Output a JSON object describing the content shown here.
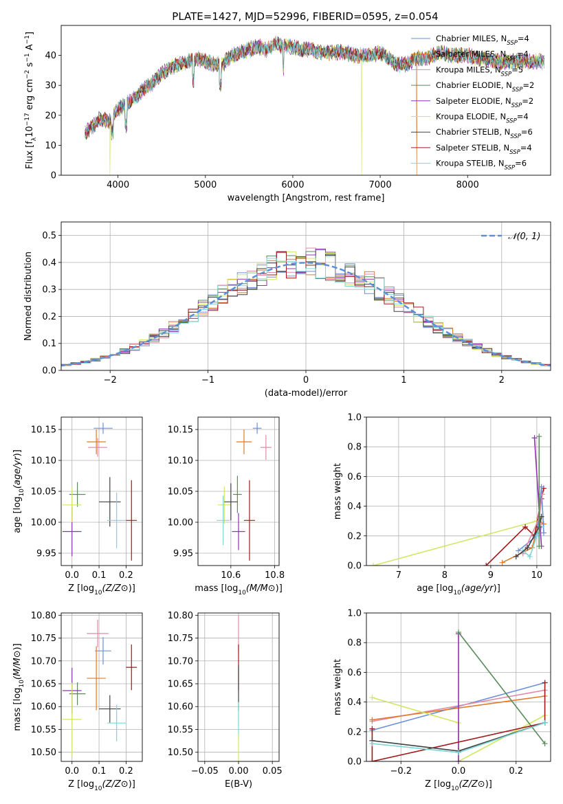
{
  "title": "PLATE=1427, MJD=52996, FIBERID=0595, z=0.054",
  "colors": {
    "chabrier_miles": "#6a8fd8",
    "salpeter_miles": "#e07a28",
    "kroupa_miles": "#e08aa8",
    "chabrier_elodie": "#5a8a5a",
    "salpeter_elodie": "#9030b0",
    "kroupa_elodie": "#d0e860",
    "chabrier_stelib": "#404040",
    "salpeter_stelib": "#a01818",
    "kroupa_stelib": "#7dd6d6",
    "normal_curve": "#5b8fd8"
  },
  "legend_spectrum": [
    {
      "key": "chabrier_miles",
      "label": "Chabrier MILES, N",
      "sub": "SSP",
      "suffix": "=4"
    },
    {
      "key": "salpeter_miles",
      "label": "Salpeter MILES, N",
      "sub": "SSP",
      "suffix": "=4"
    },
    {
      "key": "kroupa_miles",
      "label": "Kroupa MILES, N",
      "sub": "SSP",
      "suffix": "=5"
    },
    {
      "key": "chabrier_elodie",
      "label": "Chabrier ELODIE, N",
      "sub": "SSP",
      "suffix": "=2"
    },
    {
      "key": "salpeter_elodie",
      "label": "Salpeter ELODIE, N",
      "sub": "SSP",
      "suffix": "=2"
    },
    {
      "key": "kroupa_elodie",
      "label": "Kroupa ELODIE, N",
      "sub": "SSP",
      "suffix": "=4"
    },
    {
      "key": "chabrier_stelib",
      "label": "Chabrier STELIB, N",
      "sub": "SSP",
      "suffix": "=6"
    },
    {
      "key": "salpeter_stelib",
      "label": "Salpeter STELIB, N",
      "sub": "SSP",
      "suffix": "=4"
    },
    {
      "key": "kroupa_stelib",
      "label": "Kroupa STELIB, N",
      "sub": "SSP",
      "suffix": "=6"
    }
  ],
  "legend_hist": {
    "label": "𝒩(0, 1)"
  },
  "chart_data": [
    {
      "id": "spectrum",
      "type": "line",
      "xlabel": "wavelength [Angstrom, rest frame]",
      "ylabel": "Flux [f_λ 10^-17 erg cm^-2 s^-1 A^-1]",
      "xlim": [
        3350,
        8950
      ],
      "ylim": [
        0,
        50
      ],
      "xticks": [
        4000,
        5000,
        6000,
        7000,
        8000
      ],
      "yticks": [
        0,
        10,
        20,
        30,
        40
      ],
      "x": [
        3620,
        3700,
        3800,
        3900,
        4000,
        4100,
        4200,
        4300,
        4400,
        4500,
        4600,
        4700,
        4800,
        4900,
        5000,
        5100,
        5200,
        5300,
        5400,
        5500,
        5600,
        5700,
        5800,
        5900,
        6000,
        6100,
        6200,
        6300,
        6400,
        6500,
        6600,
        6700,
        6800,
        6900,
        7000,
        7100,
        7200,
        7300,
        7400,
        7500,
        7600,
        7700,
        7800,
        7900,
        8000,
        8100,
        8200,
        8300,
        8400,
        8500,
        8600,
        8700,
        8800,
        8900
      ],
      "y": [
        14,
        16,
        19,
        18,
        22,
        24,
        26,
        29,
        31,
        34,
        36,
        37,
        38,
        39,
        38,
        37,
        37,
        40,
        41,
        42,
        43,
        42,
        44,
        43,
        43,
        42,
        42,
        41,
        41,
        41,
        41,
        40,
        40,
        40,
        41,
        39,
        37,
        37,
        39,
        39,
        40,
        41,
        40,
        40,
        40,
        39,
        39,
        38,
        38,
        38,
        38,
        38,
        38,
        38
      ],
      "glitches": [
        {
          "x": 3910,
          "series": "kroupa_elodie",
          "y": 0
        },
        {
          "x": 6790,
          "series": "kroupa_elodie",
          "y": 0
        },
        {
          "x": 7420,
          "series": "salpeter_miles",
          "y": 0
        }
      ]
    },
    {
      "id": "residuals",
      "type": "histogram",
      "xlabel": "(data-model)/error",
      "ylabel": "Normed distribution",
      "xlim": [
        -2.5,
        2.5
      ],
      "ylim": [
        0,
        0.55
      ],
      "xticks": [
        -2,
        -1,
        0,
        1,
        2
      ],
      "yticks": [
        0.0,
        0.1,
        0.2,
        0.3,
        0.4,
        0.5
      ],
      "bin_width": 0.1,
      "reference": "normal(0,1)"
    },
    {
      "id": "age_vs_Z",
      "type": "scatter",
      "xlabel": "Z [log10(Z/Z⊙)]",
      "ylabel": "age  [log10(age/yr)]",
      "xlim": [
        -0.04,
        0.26
      ],
      "ylim": [
        9.93,
        10.17
      ],
      "xticks": [
        0.0,
        0.1,
        0.2
      ],
      "yticks": [
        9.95,
        10.0,
        10.05,
        10.1,
        10.15
      ],
      "points": [
        {
          "series": "chabrier_miles",
          "x": 0.115,
          "xerr": 0.035,
          "y": 10.152,
          "yerr": 0.009
        },
        {
          "series": "salpeter_miles",
          "x": 0.09,
          "xerr": 0.035,
          "y": 10.13,
          "yerr": 0.02
        },
        {
          "series": "kroupa_miles",
          "x": 0.095,
          "xerr": 0.035,
          "y": 10.121,
          "yerr": 0.015
        },
        {
          "series": "chabrier_elodie",
          "x": 0.02,
          "xerr": 0.03,
          "y": 10.045,
          "yerr": 0.02
        },
        {
          "series": "salpeter_elodie",
          "x": 0.0,
          "xerr": 0.035,
          "y": 9.985,
          "yerr": 0.04
        },
        {
          "series": "kroupa_elodie",
          "x": 0.0,
          "xerr": 0.035,
          "y": 10.028,
          "yerr": 0.028
        },
        {
          "series": "chabrier_stelib",
          "x": 0.14,
          "xerr": 0.04,
          "y": 10.033,
          "yerr": 0.04
        },
        {
          "series": "salpeter_stelib",
          "x": 0.22,
          "xerr": 0.02,
          "y": 10.003,
          "yerr": 0.065
        },
        {
          "series": "kroupa_stelib",
          "x": 0.165,
          "xerr": 0.035,
          "y": 10.003,
          "yerr": 0.045
        }
      ]
    },
    {
      "id": "age_vs_mass",
      "type": "scatter",
      "xlabel": "mass [log10(M/M⊙)]",
      "ylabel": "",
      "xlim": [
        10.45,
        10.82
      ],
      "ylim": [
        9.93,
        10.17
      ],
      "xticks": [
        10.6,
        10.8
      ],
      "yticks": [
        9.95,
        10.0,
        10.05,
        10.1,
        10.15
      ],
      "points": [
        {
          "series": "chabrier_miles",
          "x": 10.72,
          "xerr": 0.02,
          "y": 10.152,
          "yerr": 0.009
        },
        {
          "series": "salpeter_miles",
          "x": 10.66,
          "xerr": 0.035,
          "y": 10.13,
          "yerr": 0.02
        },
        {
          "series": "kroupa_miles",
          "x": 10.76,
          "xerr": 0.025,
          "y": 10.121,
          "yerr": 0.02
        },
        {
          "series": "chabrier_elodie",
          "x": 10.63,
          "xerr": 0.02,
          "y": 10.045,
          "yerr": 0.03
        },
        {
          "series": "salpeter_elodie",
          "x": 10.635,
          "xerr": 0.03,
          "y": 9.985,
          "yerr": 0.03
        },
        {
          "series": "kroupa_elodie",
          "x": 10.57,
          "xerr": 0.03,
          "y": 10.028,
          "yerr": 0.03
        },
        {
          "series": "chabrier_stelib",
          "x": 10.6,
          "xerr": 0.03,
          "y": 10.033,
          "yerr": 0.03
        },
        {
          "series": "salpeter_stelib",
          "x": 10.685,
          "xerr": 0.025,
          "y": 10.003,
          "yerr": 0.065
        },
        {
          "series": "kroupa_stelib",
          "x": 10.565,
          "xerr": 0.03,
          "y": 10.003,
          "yerr": 0.04
        }
      ]
    },
    {
      "id": "weight_vs_age",
      "type": "line",
      "xlabel": "age  [log10(age/yr)]",
      "ylabel": "mass weight",
      "xlim": [
        6.3,
        10.3
      ],
      "ylim": [
        0,
        1.0
      ],
      "xticks": [
        7,
        8,
        9,
        10
      ],
      "yticks": [
        0.0,
        0.2,
        0.4,
        0.6,
        0.8,
        1.0
      ],
      "series": [
        {
          "key": "kroupa_elodie",
          "x": [
            6.45,
            10.0
          ],
          "y": [
            0.0,
            0.3
          ]
        },
        {
          "key": "salpeter_stelib",
          "x": [
            8.9,
            9.75,
            9.95,
            10.1,
            10.15
          ],
          "y": [
            0.0,
            0.26,
            0.2,
            0.45,
            0.52
          ]
        },
        {
          "key": "salpeter_miles",
          "x": [
            9.25,
            9.9,
            10.05,
            10.15
          ],
          "y": [
            0.02,
            0.12,
            0.3,
            0.28
          ]
        },
        {
          "key": "chabrier_miles",
          "x": [
            9.6,
            10.0,
            10.1,
            10.15
          ],
          "y": [
            0.1,
            0.2,
            0.53,
            0.22
          ]
        },
        {
          "key": "kroupa_miles",
          "x": [
            9.7,
            10.05,
            10.12
          ],
          "y": [
            0.08,
            0.32,
            0.48
          ]
        },
        {
          "key": "kroupa_stelib",
          "x": [
            9.7,
            9.85,
            10.0,
            10.1
          ],
          "y": [
            0.1,
            0.06,
            0.2,
            0.26
          ]
        },
        {
          "key": "chabrier_stelib",
          "x": [
            9.55,
            9.8,
            10.05,
            10.1
          ],
          "y": [
            0.06,
            0.12,
            0.26,
            0.33
          ]
        },
        {
          "key": "salpeter_elodie",
          "x": [
            9.95,
            10.1
          ],
          "y": [
            0.86,
            0.13
          ]
        },
        {
          "key": "chabrier_elodie",
          "x": [
            10.05,
            10.05
          ],
          "y": [
            0.87,
            0.13
          ]
        }
      ]
    },
    {
      "id": "mass_vs_Z",
      "type": "scatter",
      "xlabel": "Z [log10(Z/Z⊙)]",
      "ylabel": "mass [log10(M/M⊙)]",
      "xlim": [
        -0.04,
        0.26
      ],
      "ylim": [
        10.48,
        10.805
      ],
      "xticks": [
        0.0,
        0.1,
        0.2
      ],
      "yticks": [
        10.5,
        10.55,
        10.6,
        10.65,
        10.7,
        10.75,
        10.8
      ],
      "points": [
        {
          "series": "chabrier_miles",
          "x": 0.115,
          "xerr": 0.03,
          "y": 10.722,
          "yerr": 0.03
        },
        {
          "series": "salpeter_miles",
          "x": 0.09,
          "xerr": 0.035,
          "y": 10.662,
          "yerr": 0.07
        },
        {
          "series": "kroupa_miles",
          "x": 0.095,
          "xerr": 0.04,
          "y": 10.76,
          "yerr": 0.03
        },
        {
          "series": "chabrier_elodie",
          "x": 0.02,
          "xerr": 0.03,
          "y": 10.628,
          "yerr": 0.025
        },
        {
          "series": "salpeter_elodie",
          "x": 0.0,
          "xerr": 0.035,
          "y": 10.635,
          "yerr": 0.05
        },
        {
          "series": "kroupa_elodie",
          "x": 0.0,
          "xerr": 0.035,
          "y": 10.572,
          "yerr": 0.08
        },
        {
          "series": "chabrier_stelib",
          "x": 0.14,
          "xerr": 0.04,
          "y": 10.595,
          "yerr": 0.03
        },
        {
          "series": "salpeter_stelib",
          "x": 0.22,
          "xerr": 0.02,
          "y": 10.686,
          "yerr": 0.05
        },
        {
          "series": "kroupa_stelib",
          "x": 0.165,
          "xerr": 0.035,
          "y": 10.564,
          "yerr": 0.04
        }
      ]
    },
    {
      "id": "mass_vs_ebv",
      "type": "scatter",
      "xlabel": "E(B-V)",
      "ylabel": "",
      "xlim": [
        -0.06,
        0.06
      ],
      "ylim": [
        10.48,
        10.805
      ],
      "xticks": [
        -0.05,
        0.0,
        0.05
      ],
      "yticks": [
        10.5,
        10.55,
        10.6,
        10.65,
        10.7,
        10.75,
        10.8
      ],
      "points": [
        {
          "series": "kroupa_miles",
          "x": 0.0,
          "xerr": 0.0,
          "y": 10.76,
          "yerr": 0.04
        },
        {
          "series": "salpeter_stelib",
          "x": 0.0,
          "xerr": 0.0,
          "y": 10.686,
          "yerr": 0.05
        },
        {
          "series": "chabrier_stelib",
          "x": 0.0,
          "xerr": 0.0,
          "y": 10.64,
          "yerr": 0.05
        },
        {
          "series": "kroupa_stelib",
          "x": 0.0,
          "xerr": 0.0,
          "y": 10.57,
          "yerr": 0.04
        },
        {
          "series": "kroupa_elodie",
          "x": 0.0,
          "xerr": 0.0,
          "y": 10.51,
          "yerr": 0.03
        }
      ]
    },
    {
      "id": "weight_vs_Z",
      "type": "line",
      "xlabel": "Z [log10(Z/Z⊙)]",
      "ylabel": "mass weight",
      "xlim": [
        -0.32,
        0.32
      ],
      "ylim": [
        0,
        1.0
      ],
      "xticks": [
        -0.2,
        0.0,
        0.2
      ],
      "yticks": [
        0.0,
        0.2,
        0.4,
        0.6,
        0.8,
        1.0
      ],
      "series": [
        {
          "key": "chabrier_miles",
          "x": [
            -0.3,
            0.3
          ],
          "y": [
            0.21,
            0.53
          ]
        },
        {
          "key": "kroupa_miles",
          "x": [
            -0.3,
            0.3
          ],
          "y": [
            0.27,
            0.48
          ]
        },
        {
          "key": "salpeter_miles",
          "x": [
            -0.3,
            0.3
          ],
          "y": [
            0.28,
            0.44
          ]
        },
        {
          "key": "kroupa_elodie",
          "x": [
            -0.3,
            0.0,
            0.0,
            0.3
          ],
          "y": [
            0.43,
            0.26,
            0.0,
            0.31
          ]
        },
        {
          "key": "salpeter_elodie",
          "x": [
            0.0,
            0.0
          ],
          "y": [
            0.0,
            0.86
          ]
        },
        {
          "key": "chabrier_elodie",
          "x": [
            0.0,
            0.3
          ],
          "y": [
            0.87,
            0.12
          ]
        },
        {
          "key": "salpeter_stelib",
          "x": [
            -0.3,
            -0.3,
            0.3,
            0.3
          ],
          "y": [
            0.22,
            0.0,
            0.26,
            0.53
          ]
        },
        {
          "key": "chabrier_stelib",
          "x": [
            -0.3,
            0.0,
            0.3
          ],
          "y": [
            0.14,
            0.07,
            0.26
          ]
        },
        {
          "key": "kroupa_stelib",
          "x": [
            -0.3,
            0.0,
            0.3
          ],
          "y": [
            0.12,
            0.06,
            0.26
          ]
        }
      ]
    }
  ]
}
